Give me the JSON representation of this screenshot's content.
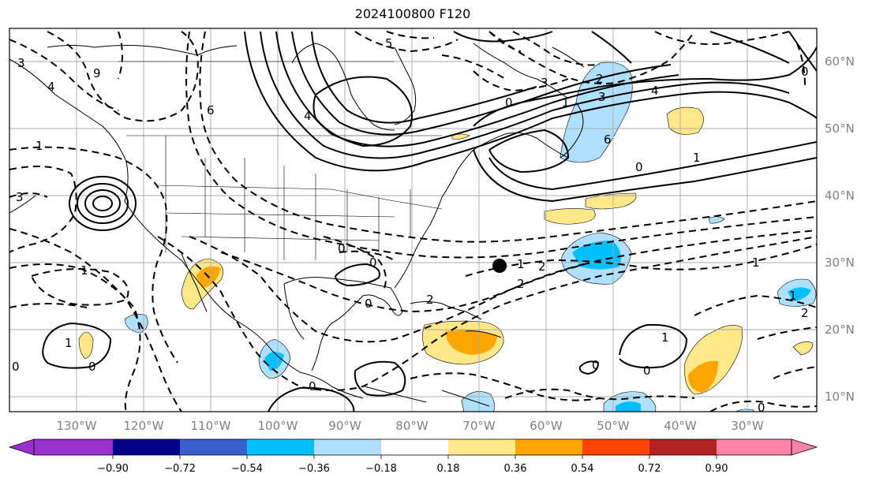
{
  "title": "2024100800 F120",
  "longitude_labels": [
    "130°W",
    "120°W",
    "110°W",
    "100°W",
    "90°W",
    "80°W",
    "70°W",
    "60°W",
    "50°W",
    "40°W",
    "30°W"
  ],
  "latitude_labels": [
    "60°N",
    "50°N",
    "40°N",
    "30°N",
    "20°N",
    "10°N"
  ],
  "colorbar": {
    "ticks": [
      "−0.90",
      "−0.72",
      "−0.54",
      "−0.36",
      "−0.18",
      "0.18",
      "0.36",
      "0.54",
      "0.72",
      "0.90"
    ],
    "colors": [
      "#9932cc",
      "#00008b",
      "#3a5fcd",
      "#00bfff",
      "#b0e0ff",
      "#ffffff",
      "#ffe88a",
      "#ffa500",
      "#ff4500",
      "#b22222",
      "#ff82ab"
    ]
  },
  "contour_labels": [
    "3",
    "9",
    "4",
    "5",
    "3",
    "0",
    "1",
    "4",
    "3",
    "2",
    "0",
    "6",
    "0",
    "4",
    "1",
    "0",
    "0",
    "6",
    "3",
    "1",
    "1",
    "1",
    "2",
    "2",
    "1",
    "1",
    "0",
    "0",
    "0",
    "1",
    "0",
    "0",
    "2",
    "1",
    "2",
    "0",
    "0"
  ],
  "marker": "storm-position-dot"
}
